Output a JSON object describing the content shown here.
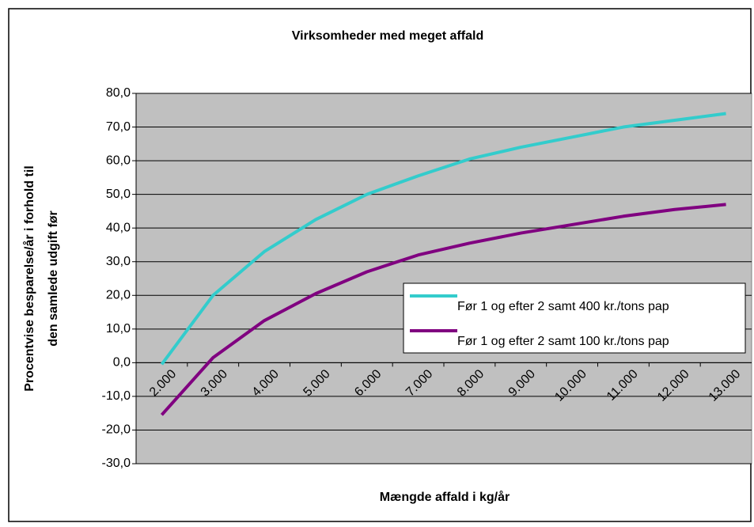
{
  "chart_data": {
    "type": "line",
    "title": "Virksomheder med meget affald",
    "xlabel": "Mængde affald i kg/år",
    "ylabel": [
      "Procentvise besparelse/år i forhold til",
      "den samlede udgift før"
    ],
    "categories": [
      "2.000",
      "3.000",
      "4.000",
      "5.000",
      "6.000",
      "7.000",
      "8.000",
      "9.000",
      "10.000",
      "11.000",
      "12.000",
      "13.000"
    ],
    "series": [
      {
        "name": "Før 1 og efter 2 samt 400 kr./tons pap",
        "color": "#33cccc",
        "values": [
          -0.5,
          20,
          33,
          42.5,
          50,
          55.5,
          60.5,
          64,
          67,
          70,
          72,
          74
        ]
      },
      {
        "name": "Før 1 og efter 2 samt 100 kr./tons pap",
        "color": "#800080",
        "values": [
          -15.5,
          1.5,
          12.5,
          20.5,
          27,
          32,
          35.5,
          38.5,
          41,
          43.5,
          45.5,
          47
        ]
      }
    ],
    "ylim": [
      -30,
      80
    ],
    "yticks": [
      {
        "value": -30,
        "label": "-30,0"
      },
      {
        "value": -20,
        "label": "-20,0"
      },
      {
        "value": -10,
        "label": "-10,0"
      },
      {
        "value": 0,
        "label": "0,0"
      },
      {
        "value": 10,
        "label": "10,0"
      },
      {
        "value": 20,
        "label": "20,0"
      },
      {
        "value": 30,
        "label": "30,0"
      },
      {
        "value": 40,
        "label": "40,0"
      },
      {
        "value": 50,
        "label": "50,0"
      },
      {
        "value": 60,
        "label": "60,0"
      },
      {
        "value": 70,
        "label": "70,0"
      },
      {
        "value": 80,
        "label": "80,0"
      }
    ],
    "grid": true
  }
}
